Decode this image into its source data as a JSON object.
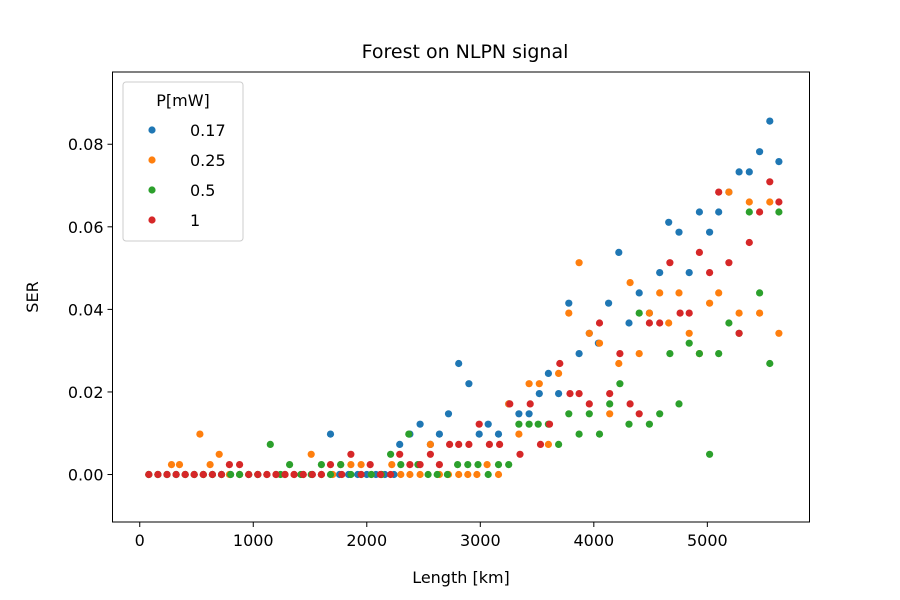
{
  "chart_data": {
    "type": "scatter",
    "title": "Forest on NLPN signal",
    "xlabel": "Length [km]",
    "ylabel": "SER",
    "xlim": [
      -240,
      5900
    ],
    "ylim": [
      -0.0115,
      0.0975
    ],
    "xticks": [
      0,
      1000,
      2000,
      3000,
      4000,
      5000
    ],
    "yticks": [
      0.0,
      0.02,
      0.04,
      0.06,
      0.08
    ],
    "xtick_labels": [
      "0",
      "1000",
      "2000",
      "3000",
      "4000",
      "5000"
    ],
    "ytick_labels": [
      "0.00",
      "0.02",
      "0.04",
      "0.06",
      "0.08"
    ],
    "grid": false,
    "legend": {
      "title": "P[mW]",
      "position": "top-left"
    },
    "series": [
      {
        "name": "0.17",
        "color": "#1f77b4",
        "points": [
          [
            80,
            0
          ],
          [
            160,
            0
          ],
          [
            240,
            0
          ],
          [
            320,
            0
          ],
          [
            400,
            0
          ],
          [
            480,
            0
          ],
          [
            560,
            0
          ],
          [
            640,
            0
          ],
          [
            720,
            0
          ],
          [
            800,
            0
          ],
          [
            880,
            0
          ],
          [
            960,
            0
          ],
          [
            1040,
            0
          ],
          [
            1120,
            0
          ],
          [
            1200,
            0
          ],
          [
            1280,
            0
          ],
          [
            1360,
            0
          ],
          [
            1440,
            0
          ],
          [
            1520,
            0
          ],
          [
            1600,
            0
          ],
          [
            1680,
            0.0098
          ],
          [
            1760,
            0
          ],
          [
            1840,
            0
          ],
          [
            1920,
            0
          ],
          [
            2000,
            0
          ],
          [
            2080,
            0
          ],
          [
            2160,
            0
          ],
          [
            2240,
            0
          ],
          [
            2290,
            0.0073
          ],
          [
            2380,
            0.0098
          ],
          [
            2470,
            0.0122
          ],
          [
            2560,
            0.0073
          ],
          [
            2640,
            0.0098
          ],
          [
            2720,
            0.0147
          ],
          [
            2810,
            0.0269
          ],
          [
            2900,
            0.022
          ],
          [
            2990,
            0.0098
          ],
          [
            3070,
            0.0122
          ],
          [
            3160,
            0.0098
          ],
          [
            3250,
            0.0171
          ],
          [
            3340,
            0.0147
          ],
          [
            3430,
            0.0147
          ],
          [
            3520,
            0.0196
          ],
          [
            3600,
            0.0245
          ],
          [
            3690,
            0.0196
          ],
          [
            3780,
            0.0415
          ],
          [
            3870,
            0.0293
          ],
          [
            3960,
            0.0342
          ],
          [
            4040,
            0.0318
          ],
          [
            4130,
            0.0415
          ],
          [
            4220,
            0.0538
          ],
          [
            4310,
            0.0367
          ],
          [
            4400,
            0.044
          ],
          [
            4490,
            0.0391
          ],
          [
            4580,
            0.0489
          ],
          [
            4660,
            0.0611
          ],
          [
            4750,
            0.0587
          ],
          [
            4840,
            0.0489
          ],
          [
            4930,
            0.0636
          ],
          [
            5020,
            0.0587
          ],
          [
            5100,
            0.0636
          ],
          [
            5190,
            0.0684
          ],
          [
            5280,
            0.0733
          ],
          [
            5370,
            0.0733
          ],
          [
            5460,
            0.0782
          ],
          [
            5550,
            0.0856
          ],
          [
            5630,
            0.0758
          ]
        ]
      },
      {
        "name": "0.25",
        "color": "#ff7f0e",
        "points": [
          [
            80,
            0
          ],
          [
            160,
            0
          ],
          [
            240,
            0
          ],
          [
            280,
            0.0024
          ],
          [
            350,
            0.0024
          ],
          [
            400,
            0
          ],
          [
            480,
            0
          ],
          [
            530,
            0.0098
          ],
          [
            560,
            0
          ],
          [
            620,
            0.0024
          ],
          [
            700,
            0.0049
          ],
          [
            790,
            0
          ],
          [
            880,
            0
          ],
          [
            960,
            0
          ],
          [
            1040,
            0
          ],
          [
            1120,
            0
          ],
          [
            1200,
            0
          ],
          [
            1280,
            0
          ],
          [
            1360,
            0
          ],
          [
            1440,
            0
          ],
          [
            1510,
            0.0049
          ],
          [
            1600,
            0
          ],
          [
            1700,
            0
          ],
          [
            1770,
            0.0024
          ],
          [
            1860,
            0.0024
          ],
          [
            1950,
            0.0024
          ],
          [
            2040,
            0
          ],
          [
            2130,
            0
          ],
          [
            2220,
            0.0024
          ],
          [
            2300,
            0
          ],
          [
            2380,
            0
          ],
          [
            2470,
            0
          ],
          [
            2560,
            0.0073
          ],
          [
            2640,
            0
          ],
          [
            2720,
            0
          ],
          [
            2810,
            0
          ],
          [
            2890,
            0
          ],
          [
            2970,
            0
          ],
          [
            3060,
            0.0024
          ],
          [
            3160,
            0
          ],
          [
            3250,
            0.0171
          ],
          [
            3340,
            0.0098
          ],
          [
            3430,
            0.022
          ],
          [
            3520,
            0.022
          ],
          [
            3600,
            0.0073
          ],
          [
            3690,
            0.0245
          ],
          [
            3780,
            0.0391
          ],
          [
            3870,
            0.0513
          ],
          [
            3960,
            0.0342
          ],
          [
            4050,
            0.0318
          ],
          [
            4140,
            0.0147
          ],
          [
            4220,
            0.0269
          ],
          [
            4320,
            0.0465
          ],
          [
            4400,
            0.0293
          ],
          [
            4490,
            0.0391
          ],
          [
            4580,
            0.044
          ],
          [
            4660,
            0.0367
          ],
          [
            4750,
            0.044
          ],
          [
            4840,
            0.0342
          ],
          [
            4930,
            0.0293
          ],
          [
            5020,
            0.0415
          ],
          [
            5100,
            0.044
          ],
          [
            5190,
            0.0684
          ],
          [
            5280,
            0.0391
          ],
          [
            5370,
            0.066
          ],
          [
            5460,
            0.0391
          ],
          [
            5550,
            0.066
          ],
          [
            5630,
            0.0342
          ]
        ]
      },
      {
        "name": "0.5",
        "color": "#2ca02c",
        "points": [
          [
            80,
            0
          ],
          [
            160,
            0
          ],
          [
            240,
            0
          ],
          [
            320,
            0
          ],
          [
            400,
            0
          ],
          [
            480,
            0
          ],
          [
            560,
            0
          ],
          [
            640,
            0
          ],
          [
            720,
            0
          ],
          [
            800,
            0
          ],
          [
            880,
            0
          ],
          [
            960,
            0
          ],
          [
            1040,
            0
          ],
          [
            1150,
            0.0073
          ],
          [
            1240,
            0
          ],
          [
            1320,
            0.0024
          ],
          [
            1420,
            0
          ],
          [
            1510,
            0
          ],
          [
            1600,
            0.0024
          ],
          [
            1680,
            0
          ],
          [
            1770,
            0.0024
          ],
          [
            1860,
            0
          ],
          [
            1950,
            0
          ],
          [
            2040,
            0
          ],
          [
            2130,
            0
          ],
          [
            2210,
            0.0049
          ],
          [
            2300,
            0.0024
          ],
          [
            2370,
            0.0098
          ],
          [
            2450,
            0.0024
          ],
          [
            2540,
            0
          ],
          [
            2620,
            0
          ],
          [
            2710,
            0
          ],
          [
            2800,
            0.0024
          ],
          [
            2890,
            0.0024
          ],
          [
            2980,
            0.0024
          ],
          [
            3070,
            0
          ],
          [
            3160,
            0.0024
          ],
          [
            3250,
            0.0024
          ],
          [
            3340,
            0.0122
          ],
          [
            3430,
            0.0122
          ],
          [
            3510,
            0.0122
          ],
          [
            3600,
            0.0122
          ],
          [
            3690,
            0.0073
          ],
          [
            3780,
            0.0147
          ],
          [
            3870,
            0.0098
          ],
          [
            3960,
            0.0147
          ],
          [
            4050,
            0.0098
          ],
          [
            4140,
            0.0171
          ],
          [
            4230,
            0.022
          ],
          [
            4310,
            0.0122
          ],
          [
            4400,
            0.0391
          ],
          [
            4490,
            0.0122
          ],
          [
            4580,
            0.0147
          ],
          [
            4670,
            0.0293
          ],
          [
            4750,
            0.0171
          ],
          [
            4840,
            0.0318
          ],
          [
            4930,
            0.0293
          ],
          [
            5020,
            0.0049
          ],
          [
            5100,
            0.0293
          ],
          [
            5190,
            0.0367
          ],
          [
            5280,
            0.0342
          ],
          [
            5370,
            0.0636
          ],
          [
            5460,
            0.044
          ],
          [
            5550,
            0.0269
          ],
          [
            5630,
            0.0636
          ]
        ]
      },
      {
        "name": "1",
        "color": "#d62728",
        "points": [
          [
            80,
            0
          ],
          [
            160,
            0
          ],
          [
            240,
            0
          ],
          [
            320,
            0
          ],
          [
            400,
            0
          ],
          [
            480,
            0
          ],
          [
            560,
            0
          ],
          [
            640,
            0
          ],
          [
            720,
            0
          ],
          [
            790,
            0.0024
          ],
          [
            880,
            0.0024
          ],
          [
            960,
            0
          ],
          [
            1040,
            0
          ],
          [
            1120,
            0
          ],
          [
            1200,
            0
          ],
          [
            1280,
            0
          ],
          [
            1360,
            0
          ],
          [
            1440,
            0
          ],
          [
            1520,
            0
          ],
          [
            1600,
            0
          ],
          [
            1680,
            0.0024
          ],
          [
            1780,
            0
          ],
          [
            1860,
            0.0049
          ],
          [
            1950,
            0
          ],
          [
            2030,
            0.0024
          ],
          [
            2120,
            0
          ],
          [
            2210,
            0
          ],
          [
            2290,
            0.0049
          ],
          [
            2380,
            0.0024
          ],
          [
            2470,
            0.0024
          ],
          [
            2560,
            0.0049
          ],
          [
            2640,
            0.0024
          ],
          [
            2730,
            0.0073
          ],
          [
            2810,
            0.0073
          ],
          [
            2900,
            0.0073
          ],
          [
            2990,
            0.0122
          ],
          [
            3080,
            0.0073
          ],
          [
            3170,
            0.0073
          ],
          [
            3260,
            0.0171
          ],
          [
            3350,
            0.0049
          ],
          [
            3440,
            0.0171
          ],
          [
            3530,
            0.0073
          ],
          [
            3610,
            0.0122
          ],
          [
            3700,
            0.0269
          ],
          [
            3790,
            0.0196
          ],
          [
            3870,
            0.0196
          ],
          [
            3960,
            0.0171
          ],
          [
            4050,
            0.0367
          ],
          [
            4140,
            0.0196
          ],
          [
            4230,
            0.0293
          ],
          [
            4320,
            0.0171
          ],
          [
            4400,
            0.0147
          ],
          [
            4490,
            0.0367
          ],
          [
            4580,
            0.0367
          ],
          [
            4670,
            0.0513
          ],
          [
            4760,
            0.0391
          ],
          [
            4840,
            0.0391
          ],
          [
            4930,
            0.0538
          ],
          [
            5020,
            0.0489
          ],
          [
            5100,
            0.0684
          ],
          [
            5190,
            0.0513
          ],
          [
            5280,
            0.0342
          ],
          [
            5370,
            0.0562
          ],
          [
            5460,
            0.0636
          ],
          [
            5550,
            0.0709
          ],
          [
            5630,
            0.066
          ]
        ]
      }
    ]
  }
}
